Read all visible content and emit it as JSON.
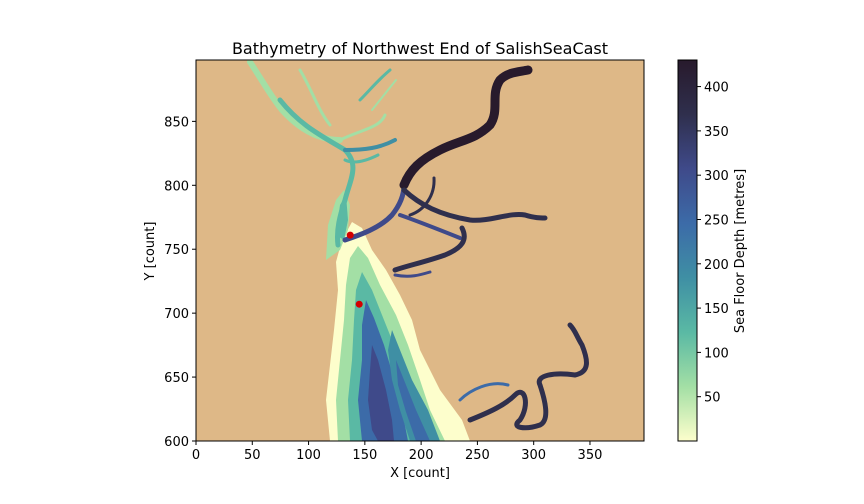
{
  "chart_data": {
    "type": "heatmap",
    "title": "Bathymetry of Northwest End of SalishSeaCast",
    "xlabel": "X [count]",
    "ylabel": "Y [count]",
    "xlim": [
      0,
      398
    ],
    "ylim": [
      600,
      898
    ],
    "xticks": [
      0,
      50,
      100,
      150,
      200,
      250,
      300,
      350
    ],
    "yticks": [
      600,
      650,
      700,
      750,
      800,
      850
    ],
    "land_color": "#deb887",
    "colorbar": {
      "label": "Sea Floor Depth [metres]",
      "range": [
        0,
        430
      ],
      "ticks": [
        50,
        100,
        150,
        200,
        250,
        300,
        350,
        400
      ],
      "colormap": "deep",
      "colors": [
        "#fdfecc",
        "#a3dfa5",
        "#5ab9a4",
        "#3f8fa4",
        "#3c6ba8",
        "#3f4a8a",
        "#2f2f4d",
        "#281a2c"
      ]
    },
    "markers": [
      {
        "x": 137,
        "y": 761,
        "color": "#d40000"
      },
      {
        "x": 145,
        "y": 707,
        "color": "#d40000"
      }
    ]
  }
}
